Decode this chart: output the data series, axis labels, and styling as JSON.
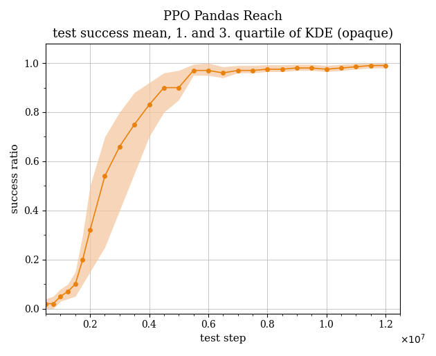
{
  "title": "PPO Pandas Reach",
  "subtitle": "test success mean, 1. and 3. quartile of KDE (opaque)",
  "xlabel": "test step",
  "ylabel": "success ratio",
  "xlim": [
    500000,
    12500000
  ],
  "ylim": [
    -0.02,
    1.08
  ],
  "line_color": "#e8820c",
  "fill_color": "#f5c49a",
  "fill_alpha": 0.7,
  "mean_x": [
    500000,
    750000,
    1000000,
    1250000,
    1500000,
    1750000,
    2000000,
    2500000,
    3000000,
    3500000,
    4000000,
    4500000,
    5000000,
    5500000,
    6000000,
    6500000,
    7000000,
    7500000,
    8000000,
    8500000,
    9000000,
    9500000,
    10000000,
    10500000,
    11000000,
    11500000,
    12000000
  ],
  "mean_y": [
    0.02,
    0.02,
    0.05,
    0.07,
    0.1,
    0.2,
    0.32,
    0.54,
    0.66,
    0.75,
    0.83,
    0.9,
    0.9,
    0.97,
    0.97,
    0.96,
    0.97,
    0.97,
    0.975,
    0.975,
    0.98,
    0.98,
    0.975,
    0.98,
    0.985,
    0.99,
    0.99
  ],
  "q1_y": [
    0.0,
    0.0,
    0.03,
    0.04,
    0.05,
    0.1,
    0.15,
    0.25,
    0.4,
    0.55,
    0.7,
    0.8,
    0.85,
    0.95,
    0.95,
    0.94,
    0.96,
    0.96,
    0.965,
    0.965,
    0.97,
    0.97,
    0.965,
    0.97,
    0.975,
    0.98,
    0.98
  ],
  "q3_y": [
    0.04,
    0.05,
    0.08,
    0.1,
    0.15,
    0.3,
    0.5,
    0.7,
    0.8,
    0.88,
    0.92,
    0.96,
    0.97,
    0.995,
    1.0,
    0.985,
    0.99,
    0.99,
    0.993,
    0.993,
    0.995,
    0.995,
    0.99,
    0.995,
    0.998,
    1.0,
    1.0
  ],
  "grid_color": "#b0b0b0",
  "title_fontsize": 13,
  "subtitle_fontsize": 11,
  "label_fontsize": 11,
  "tick_fontsize": 10
}
